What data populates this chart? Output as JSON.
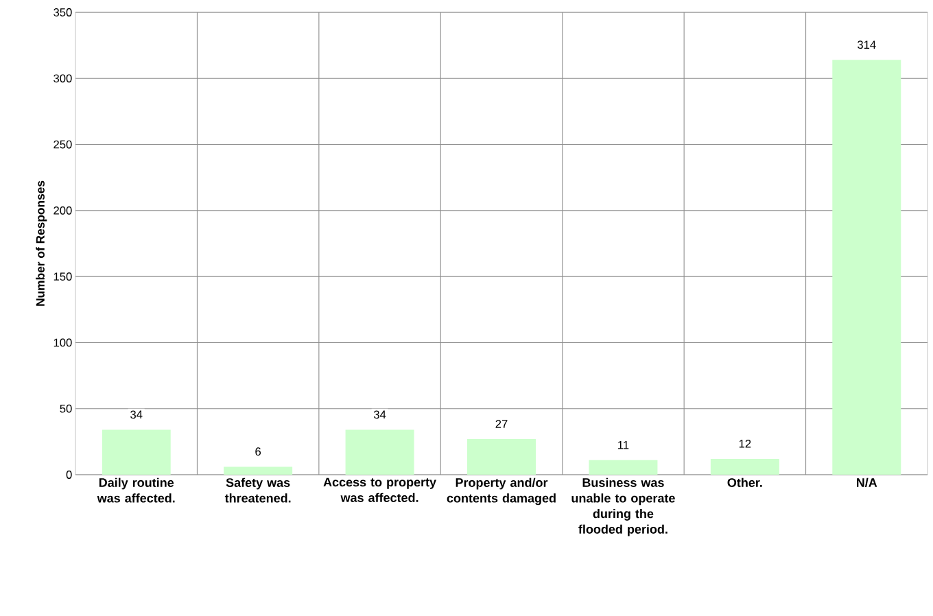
{
  "chart_data": {
    "type": "bar",
    "ylabel": "Number of Responses",
    "categories": [
      "Daily routine was affected.",
      "Safety was threatened.",
      "Access to property was affected.",
      "Property and/or contents damaged",
      "Business was unable to operate during the flooded period.",
      "Other.",
      "N/A"
    ],
    "values": [
      34,
      6,
      34,
      27,
      11,
      12,
      314
    ],
    "color": "#ccffcc",
    "ylim": [
      0,
      350
    ],
    "yticks": [
      0,
      50,
      100,
      150,
      200,
      250,
      300,
      350
    ],
    "grid": true,
    "data_labels": true
  }
}
